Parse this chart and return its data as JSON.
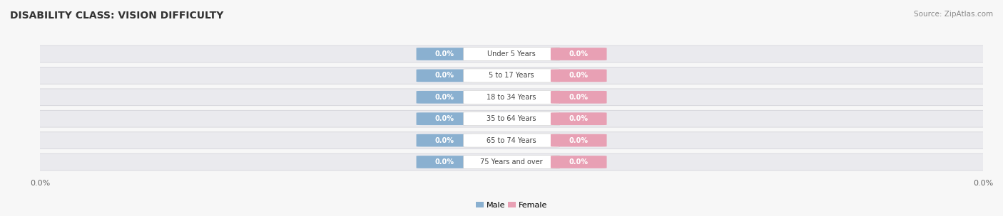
{
  "title": "DISABILITY CLASS: VISION DIFFICULTY",
  "source": "Source: ZipAtlas.com",
  "categories": [
    "Under 5 Years",
    "5 to 17 Years",
    "18 to 34 Years",
    "35 to 64 Years",
    "65 to 74 Years",
    "75 Years and over"
  ],
  "male_values": [
    0.0,
    0.0,
    0.0,
    0.0,
    0.0,
    0.0
  ],
  "female_values": [
    0.0,
    0.0,
    0.0,
    0.0,
    0.0,
    0.0
  ],
  "male_color": "#8ab0d0",
  "female_color": "#e8a0b4",
  "male_label_color": "#ffffff",
  "female_label_color": "#ffffff",
  "row_bg_color": "#eaeaee",
  "row_edge_color": "#d4d4da",
  "cat_box_color": "#ffffff",
  "cat_text_color": "#444444",
  "title_fontsize": 10,
  "source_fontsize": 7.5,
  "label_fontsize": 7,
  "cat_fontsize": 7,
  "axis_tick_label": "0.0%",
  "figsize": [
    14.06,
    3.04
  ],
  "dpi": 100,
  "fig_bg": "#f7f7f7",
  "legend_male": "Male",
  "legend_female": "Female"
}
